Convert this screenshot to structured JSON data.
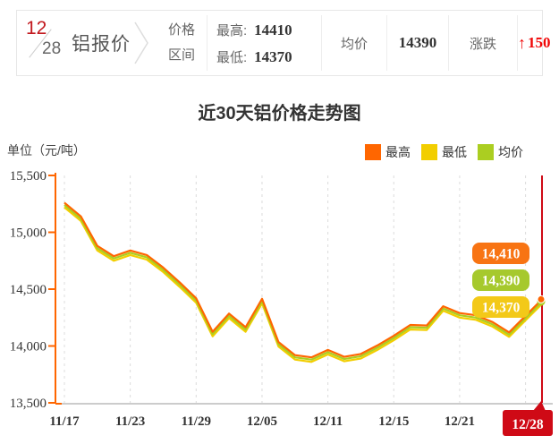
{
  "header": {
    "date": {
      "month": "12",
      "day": "28"
    },
    "product": "铝报价",
    "range_label_line1": "价格",
    "range_label_line2": "区间",
    "high_label": "最高:",
    "high_value": "14410",
    "low_label": "最低:",
    "low_value": "14370",
    "avg_label": "均价",
    "avg_value": "14390",
    "change_label": "涨跌",
    "change_arrow": "↑",
    "change_value": "150"
  },
  "title": "近30天铝价格走势图",
  "unit_label": "单位（元/吨）",
  "legend": [
    {
      "id": "high",
      "label": "最高",
      "color": "#ff6600"
    },
    {
      "id": "low",
      "label": "最低",
      "color": "#f2ce00"
    },
    {
      "id": "avg",
      "label": "均价",
      "color": "#abce21"
    }
  ],
  "chart_data": {
    "type": "line",
    "title": "近30天铝价格走势图",
    "ylabel": "单位（元/吨）",
    "ylim": [
      13500,
      15500
    ],
    "yticks": [
      15500,
      15000,
      14500,
      14000,
      13500
    ],
    "grid": "vertical-dashed",
    "legend_position": "top-right",
    "x_count": 30,
    "xtick_indices": [
      0,
      4,
      8,
      12,
      16,
      20,
      24,
      28
    ],
    "xtick_labels": [
      "11/17",
      "11/23",
      "11/29",
      "12/05",
      "12/11",
      "12/15",
      "12/21",
      "12/28"
    ],
    "current_label": "12/28",
    "current_color": "#cf0a16",
    "axis_color": "#ff6600",
    "series": [
      {
        "name": "最高",
        "color": "#ff6600",
        "values": [
          15260,
          15140,
          14880,
          14790,
          14840,
          14800,
          14690,
          14560,
          14420,
          14125,
          14285,
          14165,
          14415,
          14035,
          13920,
          13900,
          13965,
          13905,
          13930,
          14005,
          14090,
          14185,
          14180,
          14350,
          14290,
          14270,
          14210,
          14120,
          14265,
          14410
        ]
      },
      {
        "name": "均价",
        "color": "#abce21",
        "values": [
          15240,
          15120,
          14860,
          14770,
          14820,
          14780,
          14670,
          14540,
          14400,
          14105,
          14265,
          14145,
          14395,
          14015,
          13900,
          13880,
          13945,
          13885,
          13910,
          13985,
          14070,
          14165,
          14160,
          14330,
          14270,
          14250,
          14190,
          14100,
          14245,
          14390
        ]
      },
      {
        "name": "最低",
        "color": "#f2ce00",
        "values": [
          15220,
          15100,
          14840,
          14750,
          14800,
          14760,
          14650,
          14520,
          14380,
          14085,
          14245,
          14125,
          14375,
          13995,
          13880,
          13860,
          13925,
          13865,
          13890,
          13965,
          14050,
          14145,
          14140,
          14310,
          14250,
          14230,
          14170,
          14080,
          14225,
          14370
        ]
      }
    ],
    "end_labels": [
      {
        "text": "14,410",
        "color": "#f87413"
      },
      {
        "text": "14,390",
        "color": "#a6c92d"
      },
      {
        "text": "14,370",
        "color": "#f3c918"
      }
    ]
  }
}
